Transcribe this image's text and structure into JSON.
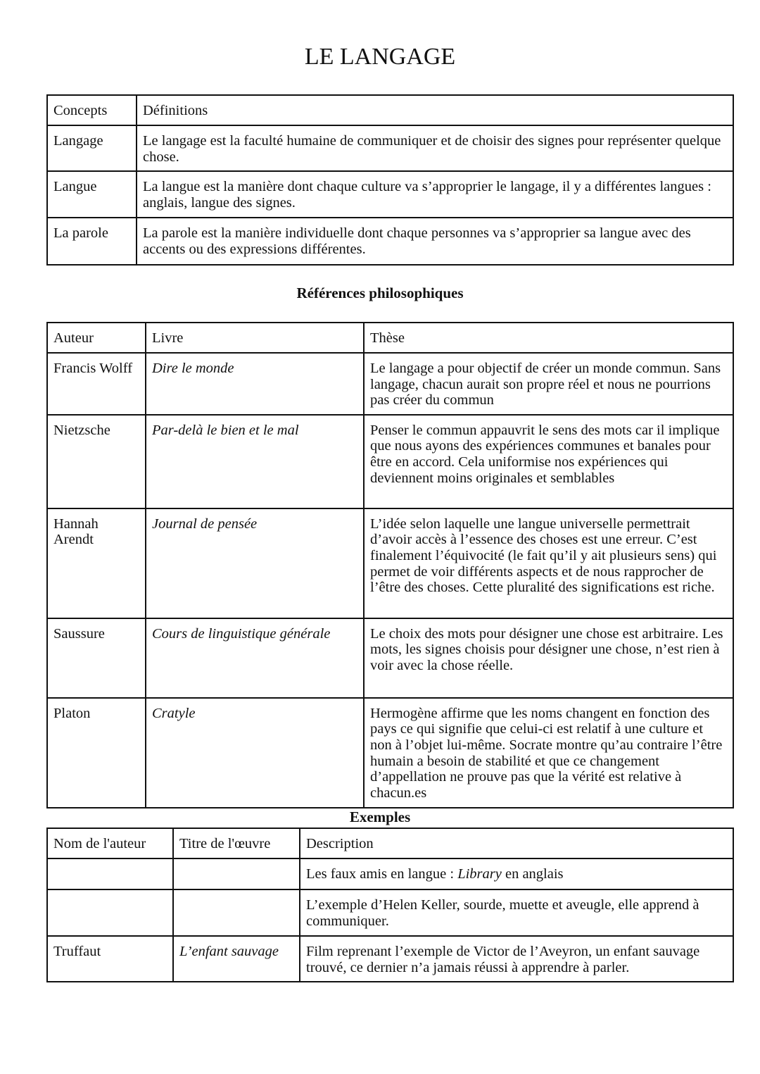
{
  "title": "LE LANGAGE",
  "concepts": {
    "headers": [
      "Concepts",
      "Définitions"
    ],
    "rows": [
      [
        "Langage",
        "Le langage est la faculté humaine de communiquer et de choisir des signes pour représenter quelque chose."
      ],
      [
        "Langue",
        "La langue est la manière dont chaque culture va s’approprier le langage, il y a différentes langues : anglais, langue des signes."
      ],
      [
        "La parole",
        "La parole est la manière individuelle dont chaque personnes va s’approprier sa langue avec des accents ou des expressions différentes."
      ]
    ]
  },
  "references": {
    "heading": "Références philosophiques",
    "headers": [
      "Auteur",
      "Livre",
      "Thèse"
    ],
    "rows": [
      [
        "Francis Wolff",
        "Dire le monde",
        "Le langage a pour objectif de créer un monde commun. Sans langage, chacun aurait son propre réel et nous ne pourrions pas créer du commun"
      ],
      [
        "Nietzsche",
        "Par-delà le bien et le mal",
        "Penser le commun appauvrit le sens des mots car il implique que nous ayons des expériences communes et banales pour être en accord. Cela uniformise nos expériences qui deviennent moins originales et semblables"
      ],
      [
        "Hannah Arendt",
        "Journal de pensée",
        "L’idée selon laquelle une langue universelle permettrait d’avoir accès à l’essence des choses est une erreur. C’est finalement l’équivocité (le fait qu’il y ait plusieurs sens) qui permet de voir différents aspects et de nous rapprocher de l’être des choses. Cette pluralité des significations est riche."
      ],
      [
        "Saussure",
        "Cours de linguistique générale",
        "Le choix des mots pour désigner une chose est arbitraire. Les mots, les signes choisis pour désigner une chose, n’est rien à voir avec la chose réelle."
      ],
      [
        "Platon",
        "Cratyle",
        "Hermogène affirme que les noms changent en fonction des pays ce qui signifie que celui-ci est relatif à une culture et non à l’objet lui-même. Socrate montre qu’au contraire l’être humain a besoin de stabilité et que ce changement d’appellation ne prouve pas que la vérité est relative à chacun.es"
      ]
    ]
  },
  "examples": {
    "heading": "Exemples",
    "headers": [
      "Nom de l'auteur",
      "Titre de l'œuvre",
      "Description"
    ],
    "row1": {
      "pre": "Les faux amis en langue : ",
      "em": "Library",
      "post": " en anglais"
    },
    "row2": "L’exemple d’Helen Keller, sourde, muette et aveugle, elle apprend à communiquer.",
    "row3": [
      "Truffaut",
      "L’enfant sauvage",
      "Film reprenant l’exemple de Victor de l’Aveyron, un enfant sauvage trouvé, ce dernier n’a jamais réussi à apprendre à parler."
    ]
  }
}
